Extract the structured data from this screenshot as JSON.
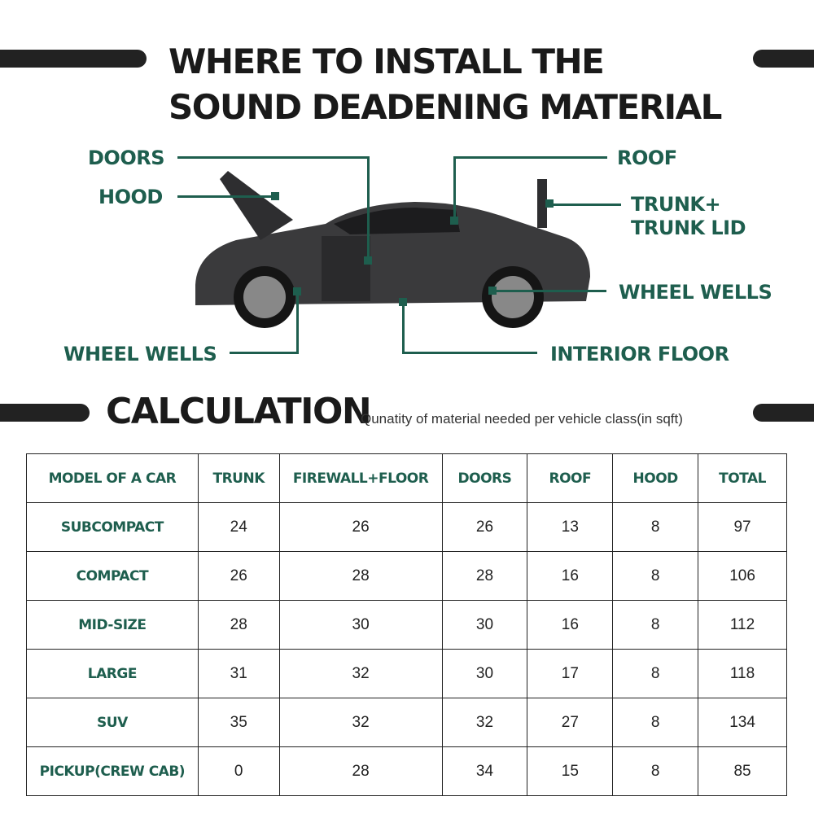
{
  "title": "WHERE TO INSTALL THE SOUND DEADENING MATERIAL",
  "labels": {
    "doors": "DOORS",
    "hood": "HOOD",
    "roof": "ROOF",
    "trunk1": "TRUNK+",
    "trunk2": "TRUNK LID",
    "wheel_right": "WHEEL WELLS",
    "wheel_left": "WHEEL WELLS",
    "interior": "INTERIOR FLOOR"
  },
  "calculation": {
    "heading": "CALCULATION",
    "subtitle": "Qunatity of material needed per vehicle class(in sqft)"
  },
  "table": {
    "headers": [
      "MODEL OF A CAR",
      "TRUNK",
      "FIREWALL+FLOOR",
      "DOORS",
      "ROOF",
      "HOOD",
      "TOTAL"
    ],
    "rows": [
      [
        "SUBCOMPACT",
        "24",
        "26",
        "26",
        "13",
        "8",
        "97"
      ],
      [
        "COMPACT",
        "26",
        "28",
        "28",
        "16",
        "8",
        "106"
      ],
      [
        "MID-SIZE",
        "28",
        "30",
        "30",
        "16",
        "8",
        "112"
      ],
      [
        "LARGE",
        "31",
        "32",
        "30",
        "17",
        "8",
        "118"
      ],
      [
        "SUV",
        "35",
        "32",
        "32",
        "27",
        "8",
        "134"
      ],
      [
        "PICKUP(CREW CAB)",
        "0",
        "28",
        "34",
        "15",
        "8",
        "85"
      ]
    ]
  },
  "colors": {
    "accent": "#1e5e4e",
    "dark": "#222222"
  }
}
